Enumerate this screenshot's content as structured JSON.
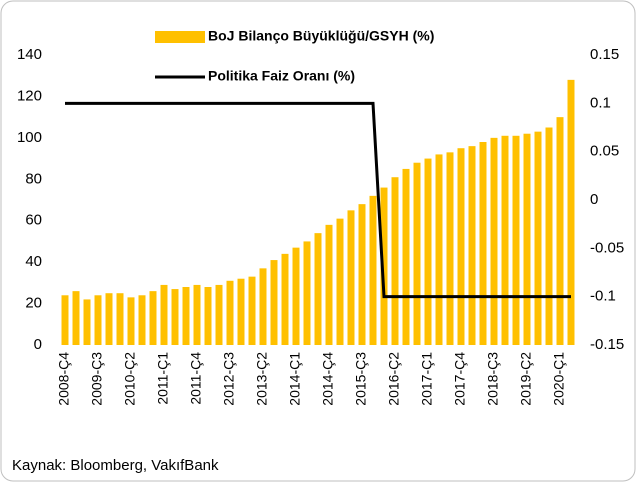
{
  "chart_data": {
    "type": "bar",
    "categories": [
      "2008-Ç4",
      null,
      null,
      "2009-Ç3",
      null,
      null,
      "2010-Ç2",
      null,
      null,
      "2011-Ç1",
      null,
      null,
      "2011-Ç4",
      null,
      null,
      "2012-Ç3",
      null,
      null,
      "2013-Ç2",
      null,
      null,
      "2014-Ç1",
      null,
      null,
      "2014-Ç4",
      null,
      null,
      "2015-Ç3",
      null,
      null,
      "2016-Ç2",
      null,
      null,
      "2017-Ç1",
      null,
      null,
      "2017-Ç4",
      null,
      null,
      "2018-Ç3",
      null,
      null,
      "2019-Ç2",
      null,
      null,
      "2020-Ç1",
      null
    ],
    "series": [
      {
        "name": "BoJ Bilanço Büyüklüğü/GSYH (%)",
        "color": "#ffc000",
        "values": [
          24,
          26,
          22,
          24,
          25,
          25,
          23,
          24,
          26,
          29,
          27,
          28,
          29,
          28,
          29,
          31,
          32,
          33,
          37,
          41,
          44,
          47,
          50,
          54,
          58,
          61,
          65,
          68,
          72,
          76,
          81,
          85,
          88,
          90,
          92,
          93,
          95,
          96,
          98,
          100,
          101,
          101,
          102,
          103,
          105,
          110,
          128
        ]
      },
      {
        "name": "Politika Faiz Oranı (%)",
        "color": "#000000",
        "type": "line",
        "axis": "y2",
        "values": [
          0.1,
          0.1,
          0.1,
          0.1,
          0.1,
          0.1,
          0.1,
          0.1,
          0.1,
          0.1,
          0.1,
          0.1,
          0.1,
          0.1,
          0.1,
          0.1,
          0.1,
          0.1,
          0.1,
          0.1,
          0.1,
          0.1,
          0.1,
          0.1,
          0.1,
          0.1,
          0.1,
          0.1,
          0.1,
          -0.1,
          -0.1,
          -0.1,
          -0.1,
          -0.1,
          -0.1,
          -0.1,
          -0.1,
          -0.1,
          -0.1,
          -0.1,
          -0.1,
          -0.1,
          -0.1,
          -0.1,
          -0.1,
          -0.1,
          -0.1
        ]
      }
    ],
    "ylim": [
      0,
      140
    ],
    "yticks": [
      0,
      20,
      40,
      60,
      80,
      100,
      120,
      140
    ],
    "y2lim": [
      -0.15,
      0.15
    ],
    "y2ticks": [
      -0.15,
      -0.1,
      -0.05,
      0,
      0.05,
      0.1,
      0.15
    ],
    "legend": "top",
    "source": "Kaynak: Bloomberg, VakıfBank"
  }
}
